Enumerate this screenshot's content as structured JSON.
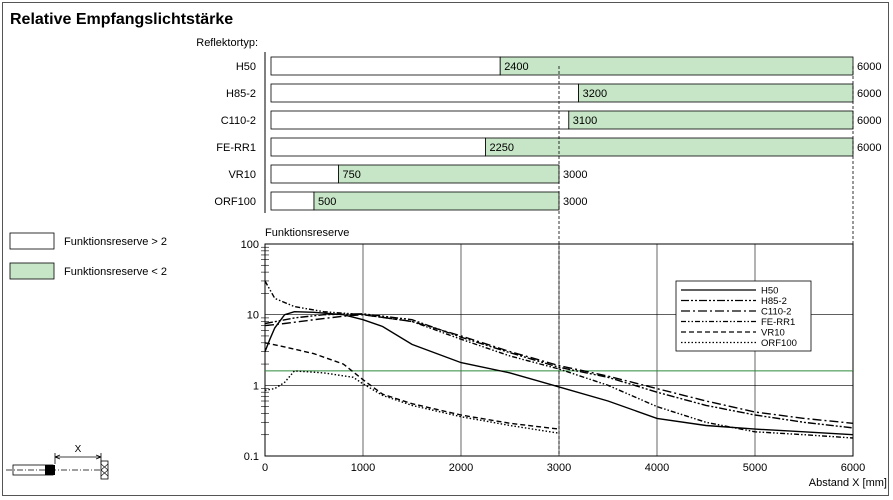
{
  "chart_data": [
    {
      "type": "bar",
      "title": "Relative Empfangslichtstärke",
      "category_label": "Reflektortyp:",
      "categories": [
        "H50",
        "H85-2",
        "C110-2",
        "FE-RR1",
        "VR10",
        "ORF100"
      ],
      "threshold_values": [
        2400,
        3200,
        3100,
        2250,
        750,
        500
      ],
      "max_values": [
        6000,
        6000,
        6000,
        6000,
        3000,
        3000
      ],
      "xlim": [
        0,
        6000
      ],
      "colors": {
        "reserve_gt_2": "#ffffff",
        "reserve_lt_2": "#c7e6c7"
      }
    },
    {
      "type": "line",
      "ylabel": "Funktionsreserve",
      "xlabel": "Abstand X [mm]",
      "yscale": "log",
      "ylim": [
        0.1,
        100
      ],
      "xlim": [
        0,
        6000
      ],
      "xticks": [
        "0",
        "1000",
        "2000",
        "3000",
        "4000",
        "5000",
        "6000"
      ],
      "yticks": [
        "0.1",
        "1",
        "10",
        "100"
      ],
      "threshold_line": 1.6,
      "grid": true,
      "legend_position": "top-right",
      "series": [
        {
          "name": "H50",
          "dash": "solid",
          "points": [
            [
              0,
              3.0
            ],
            [
              50,
              4.5
            ],
            [
              100,
              6.5
            ],
            [
              200,
              10
            ],
            [
              300,
              11
            ],
            [
              500,
              10.8
            ],
            [
              800,
              10
            ],
            [
              1000,
              8.5
            ],
            [
              1200,
              6.8
            ],
            [
              1500,
              3.8
            ],
            [
              2000,
              2.1
            ],
            [
              2500,
              1.5
            ],
            [
              3000,
              0.95
            ],
            [
              3500,
              0.6
            ],
            [
              4000,
              0.34
            ],
            [
              4500,
              0.27
            ],
            [
              5000,
              0.24
            ],
            [
              5500,
              0.22
            ],
            [
              6000,
              0.2
            ]
          ]
        },
        {
          "name": "H85-2",
          "dash": "dashdotdot",
          "points": [
            [
              0,
              7.5
            ],
            [
              300,
              9
            ],
            [
              600,
              10
            ],
            [
              1000,
              10.3
            ],
            [
              1500,
              8.5
            ],
            [
              2000,
              4.8
            ],
            [
              2500,
              2.9
            ],
            [
              3000,
              1.8
            ],
            [
              3500,
              1.3
            ],
            [
              4000,
              0.8
            ],
            [
              4500,
              0.52
            ],
            [
              5000,
              0.38
            ],
            [
              5500,
              0.3
            ],
            [
              6000,
              0.25
            ]
          ]
        },
        {
          "name": "C110-2",
          "dash": "dashdot",
          "points": [
            [
              0,
              7.0
            ],
            [
              200,
              7.5
            ],
            [
              500,
              8.5
            ],
            [
              800,
              9.5
            ],
            [
              1000,
              10
            ],
            [
              1500,
              8
            ],
            [
              2000,
              5
            ],
            [
              2500,
              3
            ],
            [
              3000,
              1.9
            ],
            [
              3500,
              1.35
            ],
            [
              4000,
              0.9
            ],
            [
              4500,
              0.6
            ],
            [
              5000,
              0.42
            ],
            [
              5500,
              0.34
            ],
            [
              6000,
              0.29
            ]
          ]
        },
        {
          "name": "FE-RR1",
          "dash": "dashdotdot2",
          "points": [
            [
              0,
              30
            ],
            [
              100,
              17
            ],
            [
              300,
              13
            ],
            [
              600,
              11
            ],
            [
              1000,
              10
            ],
            [
              1500,
              8
            ],
            [
              2000,
              4.5
            ],
            [
              2500,
              2.6
            ],
            [
              3000,
              1.7
            ],
            [
              3500,
              1.0
            ],
            [
              4000,
              0.5
            ],
            [
              4500,
              0.3
            ],
            [
              5000,
              0.22
            ],
            [
              5500,
              0.2
            ],
            [
              6000,
              0.18
            ]
          ]
        },
        {
          "name": "VR10",
          "dash": "dash",
          "points": [
            [
              0,
              4
            ],
            [
              200,
              3.5
            ],
            [
              500,
              2.8
            ],
            [
              800,
              2.0
            ],
            [
              1000,
              1.2
            ],
            [
              1200,
              0.75
            ],
            [
              1500,
              0.55
            ],
            [
              2000,
              0.38
            ],
            [
              2500,
              0.29
            ],
            [
              3000,
              0.24
            ]
          ]
        },
        {
          "name": "ORF100",
          "dash": "dot",
          "points": [
            [
              0,
              0.85
            ],
            [
              100,
              0.9
            ],
            [
              200,
              1.1
            ],
            [
              300,
              1.6
            ],
            [
              600,
              1.5
            ],
            [
              900,
              1.3
            ],
            [
              1000,
              1.05
            ],
            [
              1200,
              0.72
            ],
            [
              1500,
              0.52
            ],
            [
              2000,
              0.36
            ],
            [
              2500,
              0.27
            ],
            [
              3000,
              0.21
            ]
          ]
        }
      ]
    }
  ],
  "legend_boxes": {
    "gt2": "Funktionsreserve > 2",
    "lt2": "Funktionsreserve < 2"
  },
  "diagram_label": "X"
}
